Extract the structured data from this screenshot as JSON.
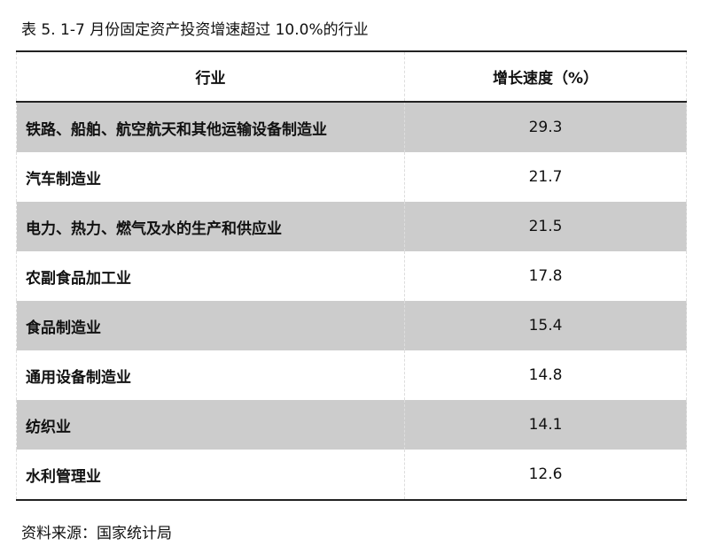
{
  "title": "表 5.   1-7 月份固定资产投资增速超过 10.0%的行业",
  "table": {
    "headers": [
      "行业",
      "增长速度（%）"
    ],
    "rows": [
      {
        "industry": "铁路、船舶、航空航天和其他运输设备制造业",
        "growth": "29.3",
        "shaded": true
      },
      {
        "industry": "汽车制造业",
        "growth": "21.7",
        "shaded": false
      },
      {
        "industry": "电力、热力、燃气及水的生产和供应业",
        "growth": "21.5",
        "shaded": true
      },
      {
        "industry": "农副食品加工业",
        "growth": "17.8",
        "shaded": false
      },
      {
        "industry": "食品制造业",
        "growth": "15.4",
        "shaded": true
      },
      {
        "industry": "通用设备制造业",
        "growth": "14.8",
        "shaded": false
      },
      {
        "industry": "纺织业",
        "growth": "14.1",
        "shaded": true
      },
      {
        "industry": "水利管理业",
        "growth": "12.6",
        "shaded": false
      }
    ]
  },
  "source": "资料来源：国家统计局",
  "colors": {
    "shaded_row": "#cccccc",
    "rule": "#222222"
  }
}
